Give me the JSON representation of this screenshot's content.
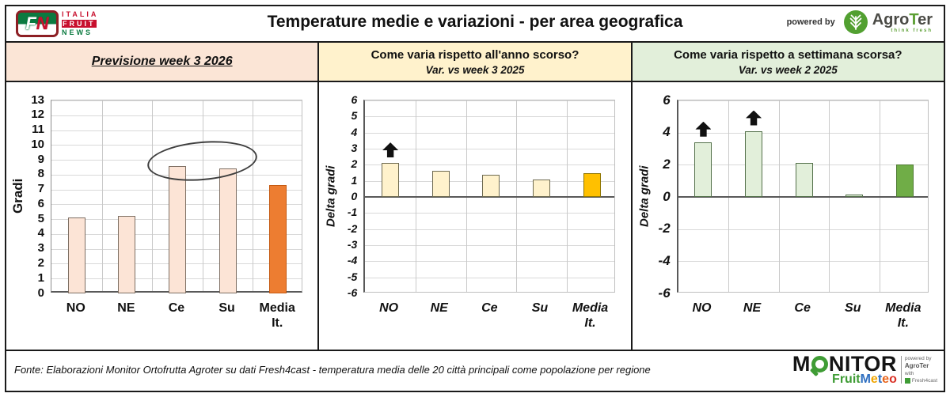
{
  "header": {
    "title": "Temperature medie e variazioni - per area geografica",
    "powered_by": "powered by",
    "fn_logo": {
      "f": "F",
      "n": "N",
      "italia": "ITALIA",
      "fruit": "FRUIT",
      "news": "NEWS"
    },
    "agroter": {
      "name_pre": "Agro",
      "name_t": "T",
      "name_post": "er",
      "tagline": "think fresh"
    }
  },
  "panel_headers": [
    {
      "title": "Previsione week 3 2026",
      "subtitle": "",
      "bg": "#FBE5D6"
    },
    {
      "title": "Come varia rispetto all'anno scorso?",
      "subtitle": "Var. vs week 3 2025",
      "bg": "#FFF2CC"
    },
    {
      "title": "Come varia rispetto a settimana scorsa?",
      "subtitle": "Var. vs week 2 2025",
      "bg": "#E2EFDA"
    }
  ],
  "chart_data": [
    {
      "type": "bar",
      "title": "Previsione week 3 2026",
      "ylabel": "Gradi",
      "categories": [
        "NO",
        "NE",
        "Ce",
        "Su",
        "Media It."
      ],
      "values": [
        5.1,
        5.2,
        8.6,
        8.4,
        7.3
      ],
      "ymin": 0,
      "ymax": 13,
      "ytick_step": 1,
      "grid_step": 1,
      "tick_size": 15,
      "italic": false,
      "zero_line": false,
      "bar_color": "#FCE4D6",
      "bar_border": "#7e6f63",
      "highlight_index": 4,
      "highlight_color": "#ED7D31",
      "highlight_border": "#c55a11",
      "arrows": [],
      "ellipse": {
        "from_cat": 2,
        "to_cat": 3,
        "y_center": 8.95,
        "ry_units": 1.3
      }
    },
    {
      "type": "bar",
      "title": "Var. vs week 3 2025",
      "ylabel": "Delta gradi",
      "categories": [
        "NO",
        "NE",
        "Ce",
        "Su",
        "Media It."
      ],
      "values": [
        2.1,
        1.6,
        1.4,
        1.1,
        1.5
      ],
      "ymin": -6,
      "ymax": 6,
      "ytick_step": 1,
      "grid_step": 1,
      "tick_size": 14,
      "italic": true,
      "zero_line": true,
      "bar_color": "#FFF2CC",
      "bar_border": "#6e6a50",
      "highlight_index": 4,
      "highlight_color": "#FFC000",
      "highlight_border": "#8f7500",
      "arrows": [
        0
      ],
      "ellipse": null
    },
    {
      "type": "bar",
      "title": "Var. vs week 2 2025",
      "ylabel": "Delta gradi",
      "categories": [
        "NO",
        "NE",
        "Ce",
        "Su",
        "Media It."
      ],
      "values": [
        3.4,
        4.1,
        2.1,
        0.15,
        2.0
      ],
      "ymin": -6,
      "ymax": 6,
      "ytick_step": 2,
      "grid_step": 2,
      "tick_size": 17,
      "italic": true,
      "zero_line": true,
      "bar_color": "#E2EFDA",
      "bar_border": "#54714b",
      "highlight_index": 4,
      "highlight_color": "#70AD47",
      "highlight_border": "#4e7a33",
      "arrows": [
        0,
        1
      ],
      "ellipse": null
    }
  ],
  "footer": {
    "fonte": "Fonte: Elaborazioni Monitor Ortofrutta Agroter su dati Fresh4cast - temperatura media delle 20 città principali come popolazione per regione",
    "monitor_logo": {
      "word_pre": "M",
      "word_post": "NITOR",
      "sub_fruit": "Fruit",
      "sub_meteo": "Meteo",
      "meteo_colors": [
        "#2f6fc1",
        "#f0a500",
        "#2f6fc1",
        "#e8641b",
        "#d93025"
      ],
      "side_powered": "powered by",
      "side_agroter": "AgroTer",
      "side_with": "with",
      "side_f4c": "Fresh4cast"
    }
  }
}
